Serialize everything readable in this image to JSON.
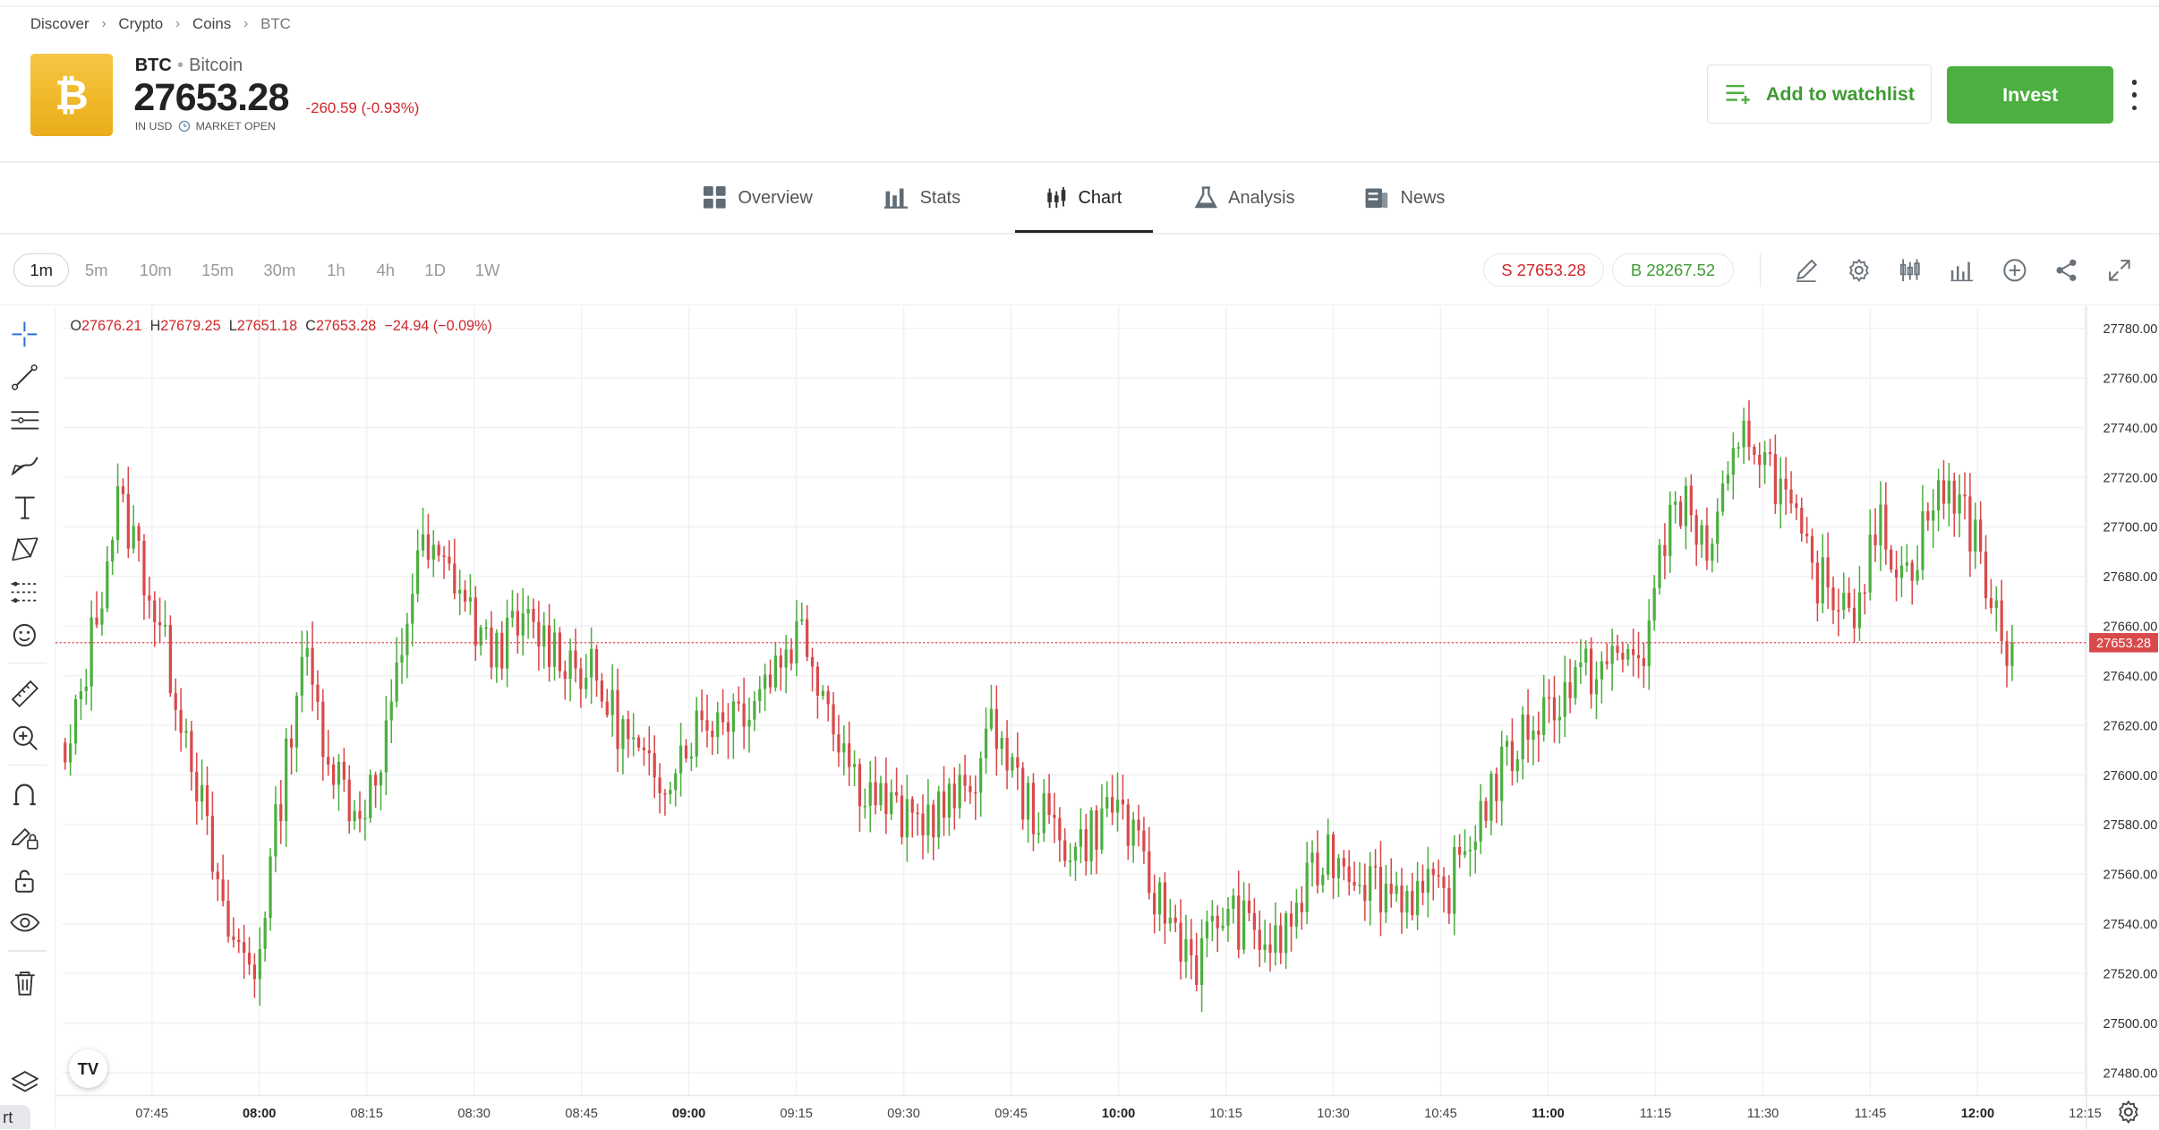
{
  "breadcrumb": [
    "Discover",
    "Crypto",
    "Coins",
    "BTC"
  ],
  "instrument": {
    "logo_symbol": "₿",
    "ticker": "BTC",
    "name": "Bitcoin",
    "price": "27653.28",
    "change": "-260.59 (-0.93%)",
    "currency_label": "IN USD",
    "market_status": "MARKET OPEN"
  },
  "actions": {
    "watchlist_label": "Add to watchlist",
    "invest_label": "Invest"
  },
  "tabs": [
    {
      "label": "Overview",
      "icon": "grid-icon"
    },
    {
      "label": "Stats",
      "icon": "bar-stats-icon"
    },
    {
      "label": "Chart",
      "icon": "candles-icon",
      "active": true
    },
    {
      "label": "Analysis",
      "icon": "flask-icon"
    },
    {
      "label": "News",
      "icon": "newspaper-icon"
    }
  ],
  "timeframes": [
    "1m",
    "5m",
    "10m",
    "15m",
    "30m",
    "1h",
    "4h",
    "1D",
    "1W"
  ],
  "active_timeframe": "1m",
  "quotes": {
    "sell": "S 27653.28",
    "buy": "B 28267.52"
  },
  "ohlc": {
    "o_label": "O",
    "o": "27676.21",
    "h_label": "H",
    "h": "27679.25",
    "l_label": "L",
    "l": "27651.18",
    "c_label": "C",
    "c": "27653.28",
    "change": "−24.94 (−0.09%)"
  },
  "colors": {
    "up": "#4caf3f",
    "down": "#d9494b",
    "accent": "#4caf3f",
    "price_line": "#d9494b"
  },
  "bottom_tab_fragment": "rt",
  "tv_badge": "TV",
  "chart_data": {
    "type": "candlestick",
    "interval": "1m",
    "ylim": [
      27470,
      27790
    ],
    "y_ticks": [
      "27780.00",
      "27760.00",
      "27740.00",
      "27720.00",
      "27700.00",
      "27680.00",
      "27660.00",
      "27640.00",
      "27620.00",
      "27600.00",
      "27580.00",
      "27560.00",
      "27540.00",
      "27520.00",
      "27500.00",
      "27480.00"
    ],
    "x_ticks": [
      {
        "label": "07:45",
        "bold": false
      },
      {
        "label": "08:00",
        "bold": true
      },
      {
        "label": "08:15",
        "bold": false
      },
      {
        "label": "08:30",
        "bold": false
      },
      {
        "label": "08:45",
        "bold": false
      },
      {
        "label": "09:00",
        "bold": true
      },
      {
        "label": "09:15",
        "bold": false
      },
      {
        "label": "09:30",
        "bold": false
      },
      {
        "label": "09:45",
        "bold": false
      },
      {
        "label": "10:00",
        "bold": true
      },
      {
        "label": "10:15",
        "bold": false
      },
      {
        "label": "10:30",
        "bold": false
      },
      {
        "label": "10:45",
        "bold": false
      },
      {
        "label": "11:00",
        "bold": true
      },
      {
        "label": "11:15",
        "bold": false
      },
      {
        "label": "11:30",
        "bold": false
      },
      {
        "label": "11:45",
        "bold": false
      },
      {
        "label": "12:00",
        "bold": true
      },
      {
        "label": "12:15",
        "bold": false
      }
    ],
    "current_price": "27653.28",
    "anchors": [
      [
        0,
        27600
      ],
      [
        10,
        27710
      ],
      [
        14,
        27690
      ],
      [
        24,
        27610
      ],
      [
        30,
        27540
      ],
      [
        36,
        27520
      ],
      [
        45,
        27650
      ],
      [
        50,
        27610
      ],
      [
        55,
        27585
      ],
      [
        60,
        27600
      ],
      [
        67,
        27690
      ],
      [
        74,
        27680
      ],
      [
        80,
        27650
      ],
      [
        88,
        27660
      ],
      [
        100,
        27640
      ],
      [
        112,
        27595
      ],
      [
        120,
        27620
      ],
      [
        130,
        27630
      ],
      [
        140,
        27660
      ],
      [
        145,
        27630
      ],
      [
        150,
        27600
      ],
      [
        160,
        27580
      ],
      [
        170,
        27590
      ],
      [
        177,
        27620
      ],
      [
        182,
        27590
      ],
      [
        192,
        27570
      ],
      [
        200,
        27590
      ],
      [
        206,
        27555
      ],
      [
        215,
        27525
      ],
      [
        220,
        27545
      ],
      [
        230,
        27530
      ],
      [
        240,
        27570
      ],
      [
        250,
        27555
      ],
      [
        262,
        27550
      ],
      [
        270,
        27590
      ],
      [
        278,
        27620
      ],
      [
        288,
        27640
      ],
      [
        300,
        27650
      ],
      [
        306,
        27715
      ],
      [
        312,
        27690
      ],
      [
        320,
        27740
      ],
      [
        325,
        27720
      ],
      [
        332,
        27680
      ],
      [
        340,
        27670
      ],
      [
        345,
        27700
      ],
      [
        350,
        27680
      ],
      [
        355,
        27710
      ],
      [
        360,
        27715
      ],
      [
        362,
        27700
      ],
      [
        365,
        27680
      ],
      [
        368,
        27650
      ],
      [
        370,
        27653.28
      ]
    ]
  }
}
